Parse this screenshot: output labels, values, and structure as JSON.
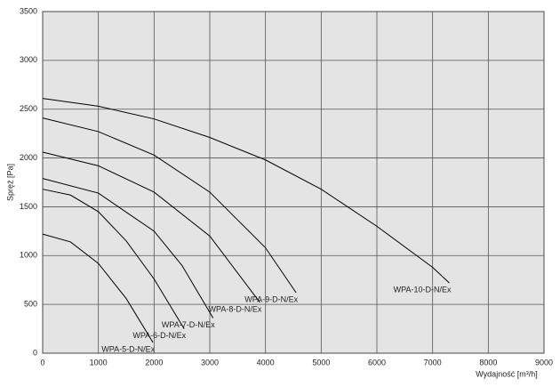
{
  "chart_data": {
    "type": "line",
    "x_label": "Wydajność [m³/h]",
    "y_label": "Spręż [Pa]",
    "xlim": [
      0,
      9000
    ],
    "xticks": [
      0,
      1000,
      2000,
      3000,
      4000,
      5000,
      6000,
      7000,
      8000,
      9000
    ],
    "ylim": [
      0,
      3500
    ],
    "yticks": [
      0,
      500,
      1000,
      1500,
      2000,
      2500,
      3000,
      3500
    ],
    "grid": true,
    "series": [
      {
        "name": "WPA-10-D-N/Ex",
        "color": "#000000",
        "x": [
          0,
          1000,
          2000,
          3000,
          4000,
          5000,
          6000,
          7000,
          7300
        ],
        "values": [
          2610,
          2530,
          2400,
          2210,
          1980,
          1680,
          1300,
          880,
          720
        ]
      },
      {
        "name": "WPA-9-D-N/Ex",
        "color": "#000000",
        "x": [
          0,
          1000,
          2000,
          3000,
          4000,
          4550
        ],
        "values": [
          2410,
          2270,
          2030,
          1650,
          1080,
          620
        ]
      },
      {
        "name": "WPA-8-D-N/Ex",
        "color": "#000000",
        "x": [
          0,
          1000,
          2000,
          3000,
          3900
        ],
        "values": [
          2060,
          1920,
          1650,
          1200,
          520
        ]
      },
      {
        "name": "WPA-7-D-N/Ex",
        "color": "#000000",
        "x": [
          0,
          1000,
          2000,
          2500,
          3060
        ],
        "values": [
          1790,
          1640,
          1250,
          900,
          360
        ]
      },
      {
        "name": "WPA-6-D-N/Ex",
        "color": "#000000",
        "x": [
          0,
          500,
          1000,
          1500,
          2000,
          2540
        ],
        "values": [
          1680,
          1620,
          1450,
          1150,
          760,
          250
        ]
      },
      {
        "name": "WPA-5-D-N/Ex",
        "color": "#000000",
        "x": [
          0,
          500,
          1000,
          1500,
          1980
        ],
        "values": [
          1220,
          1140,
          920,
          560,
          110
        ]
      }
    ]
  }
}
